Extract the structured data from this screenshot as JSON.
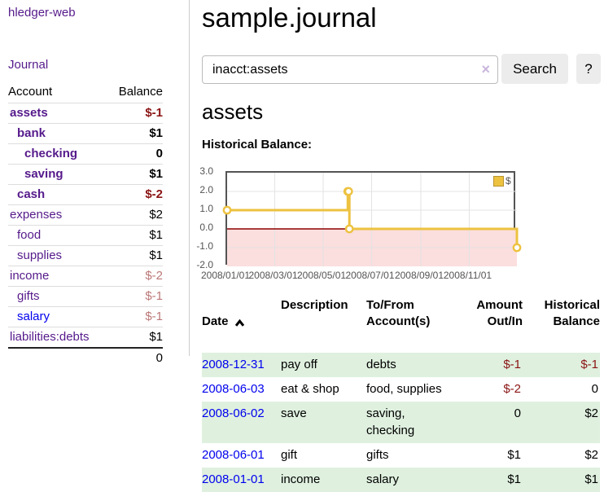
{
  "brand": "hledger-web",
  "colors": {
    "link_visited": "#551a8b",
    "link_unvisited": "#0000ee",
    "negative_strong": "#8b1414",
    "negative_soft": "#bc7878",
    "row_stripe_green": "#dff0df",
    "chart_line": "#edc240",
    "chart_negative_fill": "#fbdede",
    "chart_zero_line": "#8b0000"
  },
  "sidebar": {
    "journal_link": "Journal",
    "accounts": {
      "header_account": "Account",
      "header_balance": "Balance",
      "rows": [
        {
          "name": "assets",
          "indent": 0,
          "bold": true,
          "balance": "$-1",
          "neg": "strong"
        },
        {
          "name": "bank",
          "indent": 1,
          "bold": true,
          "balance": "$1",
          "neg": ""
        },
        {
          "name": "checking",
          "indent": 2,
          "bold": true,
          "balance": "0",
          "neg": ""
        },
        {
          "name": "saving",
          "indent": 2,
          "bold": true,
          "balance": "$1",
          "neg": ""
        },
        {
          "name": "cash",
          "indent": 1,
          "bold": true,
          "balance": "$-2",
          "neg": "strong"
        },
        {
          "name": "expenses",
          "indent": 0,
          "bold": false,
          "balance": "$2",
          "neg": ""
        },
        {
          "name": "food",
          "indent": 1,
          "bold": false,
          "balance": "$1",
          "neg": ""
        },
        {
          "name": "supplies",
          "indent": 1,
          "bold": false,
          "balance": "$1",
          "neg": ""
        },
        {
          "name": "income",
          "indent": 0,
          "bold": false,
          "balance": "$-2",
          "neg": "soft"
        },
        {
          "name": "gifts",
          "indent": 1,
          "bold": false,
          "balance": "$-1",
          "neg": "soft"
        },
        {
          "name": "salary",
          "indent": 1,
          "bold": false,
          "balance": "$-1",
          "neg": "soft",
          "unvisited": true
        },
        {
          "name": "liabilities:debts",
          "indent": 0,
          "bold": false,
          "balance": "$1",
          "neg": ""
        }
      ],
      "total": "0"
    }
  },
  "main": {
    "title": "sample.journal",
    "search": {
      "value": "inacct:assets",
      "clear_label": "×",
      "button": "Search",
      "help": "?"
    },
    "account_heading": "assets",
    "chart_title": "Historical Balance:"
  },
  "register": {
    "headers": {
      "date": "Date",
      "description": "Description",
      "accounts": "To/From\nAccount(s)",
      "amount": "Amount\nOut/In",
      "balance": "Historical\nBalance"
    },
    "sort": "ascending",
    "rows": [
      {
        "date": "2008-12-31",
        "description": "pay off",
        "accounts": "debts",
        "amount": "$-1",
        "amount_neg": true,
        "balance": "$-1",
        "balance_neg": true
      },
      {
        "date": "2008-06-03",
        "description": "eat & shop",
        "accounts": "food, supplies",
        "amount": "$-2",
        "amount_neg": true,
        "balance": "0",
        "balance_neg": false
      },
      {
        "date": "2008-06-02",
        "description": "save",
        "accounts": "saving,\nchecking",
        "amount": "0",
        "amount_neg": false,
        "balance": "$2",
        "balance_neg": false
      },
      {
        "date": "2008-06-01",
        "description": "gift",
        "accounts": "gifts",
        "amount": "$1",
        "amount_neg": false,
        "balance": "$2",
        "balance_neg": false
      },
      {
        "date": "2008-01-01",
        "description": "income",
        "accounts": "salary",
        "amount": "$1",
        "amount_neg": false,
        "balance": "$1",
        "balance_neg": false
      }
    ]
  },
  "chart_data": {
    "type": "line",
    "title": "Historical Balance:",
    "step": "after",
    "series": [
      {
        "name": "$",
        "color": "#edc240",
        "points": [
          [
            "2008-01-01",
            1
          ],
          [
            "2008-06-01",
            2
          ],
          [
            "2008-06-02",
            2
          ],
          [
            "2008-06-03",
            0
          ],
          [
            "2008-12-31",
            -1
          ]
        ]
      }
    ],
    "x_range": [
      "2008-01-01",
      "2008-12-31"
    ],
    "x_ticks": [
      "2008/01/01",
      "2008/03/01",
      "2008/05/01",
      "2008/07/01",
      "2008/09/01",
      "2008/11/01"
    ],
    "y_ticks": [
      "3.0",
      "2.0",
      "1.0",
      "0.0",
      "-1.0",
      "-2.0"
    ],
    "ylim": [
      -2,
      3
    ],
    "grid": true,
    "legend_position": "top-right",
    "negative_region_shaded": true
  }
}
